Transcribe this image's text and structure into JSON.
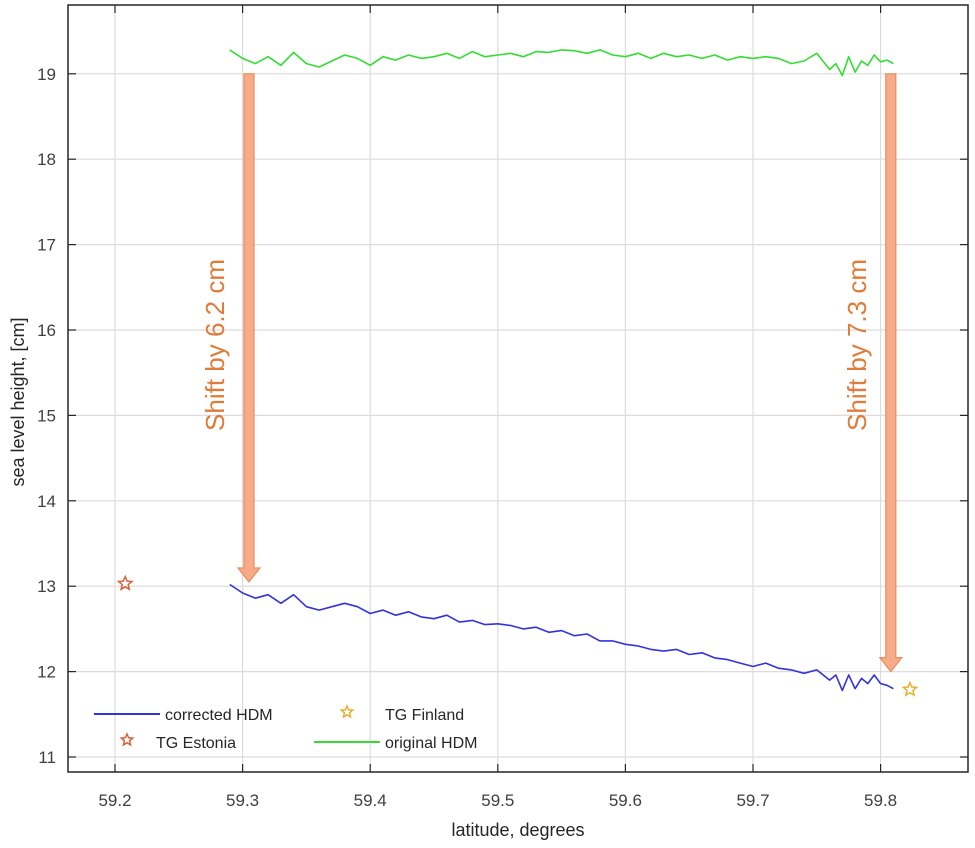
{
  "chart_data": {
    "type": "line",
    "title": "",
    "xlabel": "latitude, degrees",
    "ylabel": "sea level height, [cm]",
    "xlim": [
      59.17,
      59.87
    ],
    "ylim": [
      10.8,
      19.85
    ],
    "xticks": [
      59.2,
      59.3,
      59.4,
      59.5,
      59.6,
      59.7,
      59.8
    ],
    "xtick_labels": [
      "59.2",
      "59.3",
      "59.4",
      "59.5",
      "59.6",
      "59.7",
      "59.8"
    ],
    "yticks": [
      11,
      12,
      13,
      14,
      15,
      16,
      17,
      18,
      19
    ],
    "ytick_labels": [
      "11",
      "12",
      "13",
      "14",
      "15",
      "16",
      "17",
      "18",
      "19"
    ],
    "grid": true,
    "legend_position": "lower left",
    "series": [
      {
        "name": "original HDM",
        "color": "#33dd33",
        "type": "line",
        "x": [
          59.29,
          59.3,
          59.31,
          59.32,
          59.33,
          59.34,
          59.35,
          59.36,
          59.37,
          59.38,
          59.39,
          59.4,
          59.41,
          59.42,
          59.43,
          59.44,
          59.45,
          59.46,
          59.47,
          59.48,
          59.49,
          59.5,
          59.51,
          59.52,
          59.53,
          59.54,
          59.55,
          59.56,
          59.57,
          59.58,
          59.59,
          59.6,
          59.61,
          59.62,
          59.63,
          59.64,
          59.65,
          59.66,
          59.67,
          59.68,
          59.69,
          59.7,
          59.71,
          59.72,
          59.73,
          59.74,
          59.75,
          59.76,
          59.765,
          59.77,
          59.775,
          59.78,
          59.785,
          59.79,
          59.795,
          59.8,
          59.805,
          59.81
        ],
        "values": [
          19.28,
          19.18,
          19.12,
          19.2,
          19.1,
          19.25,
          19.12,
          19.08,
          19.15,
          19.22,
          19.18,
          19.1,
          19.2,
          19.16,
          19.22,
          19.18,
          19.2,
          19.24,
          19.18,
          19.26,
          19.2,
          19.22,
          19.24,
          19.2,
          19.26,
          19.25,
          19.28,
          19.27,
          19.24,
          19.28,
          19.22,
          19.2,
          19.24,
          19.18,
          19.24,
          19.2,
          19.22,
          19.18,
          19.22,
          19.16,
          19.2,
          19.18,
          19.2,
          19.18,
          19.12,
          19.15,
          19.24,
          19.05,
          19.12,
          18.98,
          19.2,
          19.02,
          19.15,
          19.1,
          19.22,
          19.14,
          19.16,
          19.12
        ]
      },
      {
        "name": "corrected HDM",
        "color": "#3333dd",
        "type": "line",
        "x": [
          59.29,
          59.3,
          59.31,
          59.32,
          59.33,
          59.34,
          59.35,
          59.36,
          59.37,
          59.38,
          59.39,
          59.4,
          59.41,
          59.42,
          59.43,
          59.44,
          59.45,
          59.46,
          59.47,
          59.48,
          59.49,
          59.5,
          59.51,
          59.52,
          59.53,
          59.54,
          59.55,
          59.56,
          59.57,
          59.58,
          59.59,
          59.6,
          59.61,
          59.62,
          59.63,
          59.64,
          59.65,
          59.66,
          59.67,
          59.68,
          59.69,
          59.7,
          59.71,
          59.72,
          59.73,
          59.74,
          59.75,
          59.76,
          59.765,
          59.77,
          59.775,
          59.78,
          59.785,
          59.79,
          59.795,
          59.8,
          59.805,
          59.81
        ],
        "values": [
          13.02,
          12.92,
          12.86,
          12.9,
          12.8,
          12.9,
          12.76,
          12.72,
          12.76,
          12.8,
          12.76,
          12.68,
          12.72,
          12.66,
          12.7,
          12.64,
          12.62,
          12.66,
          12.58,
          12.6,
          12.55,
          12.56,
          12.54,
          12.5,
          12.52,
          12.46,
          12.48,
          12.42,
          12.44,
          12.36,
          12.36,
          12.32,
          12.3,
          12.26,
          12.24,
          12.26,
          12.2,
          12.22,
          12.16,
          12.14,
          12.1,
          12.06,
          12.1,
          12.04,
          12.02,
          11.98,
          12.02,
          11.9,
          11.96,
          11.78,
          11.96,
          11.8,
          11.92,
          11.86,
          11.96,
          11.86,
          11.84,
          11.8
        ]
      },
      {
        "name": "TG Estonia",
        "color": "#d9603a",
        "type": "scatter",
        "marker": "pentagram",
        "x": [
          59.208
        ],
        "values": [
          13.03
        ]
      },
      {
        "name": "TG Finland",
        "color": "#e8b030",
        "type": "scatter",
        "marker": "pentagram",
        "x": [
          59.823
        ],
        "values": [
          11.79
        ]
      }
    ],
    "annotations": [
      {
        "text": "Shift by 6.2 cm",
        "type": "arrow",
        "x": 59.305,
        "y_from": 19.0,
        "y_to": 13.05,
        "color": "#f4a07a"
      },
      {
        "text": "Shift by 7.3 cm",
        "type": "arrow",
        "x": 59.808,
        "y_from": 19.0,
        "y_to": 12.0,
        "color": "#f4a07a"
      }
    ],
    "legend": [
      {
        "label": "corrected HDM",
        "kind": "line",
        "color": "#3333dd"
      },
      {
        "label": "TG Finland",
        "kind": "star",
        "color": "#e8b030"
      },
      {
        "label": "TG Estonia",
        "kind": "star",
        "color": "#d9603a"
      },
      {
        "label": "original HDM",
        "kind": "line",
        "color": "#33dd33"
      }
    ]
  },
  "labels": {
    "xlabel": "latitude, degrees",
    "ylabel": "sea level height, [cm]",
    "annot_left": "Shift by 6.2 cm",
    "annot_right": "Shift by 7.3 cm",
    "legend_corrected": "corrected HDM",
    "legend_finland": "TG Finland",
    "legend_estonia": "TG Estonia",
    "legend_original": "original HDM"
  },
  "colors": {
    "axis": "#262626",
    "grid": "#dcdcdc",
    "arrow_fill": "#f7ab88",
    "arrow_stroke": "#ea8c5e",
    "annotation_text": "#e07b39"
  }
}
